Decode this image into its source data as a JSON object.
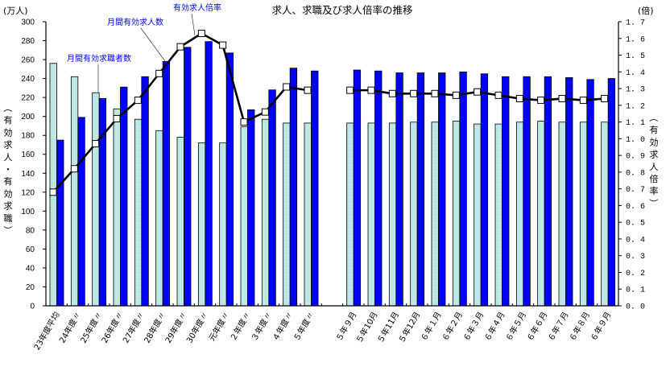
{
  "chart_data": {
    "type": "bar+line",
    "title": "求人、求職及び求人倍率の推移",
    "left_axis": {
      "unit": "(万人)",
      "label": "（有効求人・有効求職）",
      "ticks": [
        0,
        20,
        40,
        60,
        80,
        100,
        120,
        140,
        160,
        180,
        200,
        220,
        240,
        260,
        280,
        300
      ],
      "ylim": [
        0,
        300
      ]
    },
    "right_axis": {
      "unit": "(倍)",
      "label": "（有効求人倍率）",
      "ticks": [
        "0.0",
        "0.1",
        "0.2",
        "0.3",
        "0.4",
        "0.5",
        "0.6",
        "0.7",
        "0.8",
        "0.9",
        "1.0",
        "1.1",
        "1.2",
        "1.3",
        "1.4",
        "1.5",
        "1.6",
        "1.7"
      ],
      "ylim": [
        0,
        1.7
      ]
    },
    "categories": [
      "23年度平均",
      "24年度〃",
      "25年度〃",
      "26年度〃",
      "27年度〃",
      "28年度〃",
      "29年度〃",
      "30年度〃",
      "元年度〃",
      "２年度〃",
      "３年度〃",
      "４年度〃",
      "５年度〃",
      "",
      "５年９月",
      "５年10月",
      "５年11月",
      "５年12月",
      "６年１月",
      "６年２月",
      "６年３月",
      "６年４月",
      "６年５月",
      "６年６月",
      "６年７月",
      "６年８月",
      "６年９月"
    ],
    "series": [
      {
        "name": "月間有効求職者数",
        "type": "bar",
        "axis": "left",
        "color": "#b4e4e4",
        "values": [
          256,
          242,
          225,
          208,
          197,
          185,
          178,
          172,
          172,
          189,
          197,
          193,
          193,
          null,
          193,
          193,
          193,
          194,
          194,
          195,
          192,
          192,
          194,
          195,
          194,
          194,
          194
        ]
      },
      {
        "name": "月間有効求人数",
        "type": "bar",
        "axis": "left",
        "color": "#0000ff",
        "values": [
          175,
          199,
          219,
          231,
          242,
          258,
          273,
          279,
          267,
          207,
          228,
          251,
          248,
          null,
          249,
          248,
          246,
          246,
          246,
          247,
          245,
          242,
          242,
          242,
          241,
          239,
          240
        ]
      },
      {
        "name": "有効求人倍率",
        "type": "line",
        "axis": "right",
        "color": "#000000",
        "marker": "square-white",
        "values": [
          0.68,
          0.82,
          0.97,
          1.12,
          1.23,
          1.39,
          1.55,
          1.63,
          1.56,
          1.1,
          1.16,
          1.31,
          1.29,
          null,
          1.29,
          1.29,
          1.27,
          1.27,
          1.27,
          1.26,
          1.28,
          1.26,
          1.24,
          1.23,
          1.24,
          1.23,
          1.24
        ]
      }
    ],
    "annotations": [
      {
        "text": "月間有効求職者数",
        "points_to": "25年度〃 月間有効求職者数"
      },
      {
        "text": "月間有効求人数",
        "points_to": "28年度〃 月間有効求人数"
      },
      {
        "text": "有効求人倍率",
        "points_to": "29年度〃-30年度〃 有効求人倍率"
      }
    ],
    "legend": "none (leader-line annotations)",
    "grid": false
  }
}
